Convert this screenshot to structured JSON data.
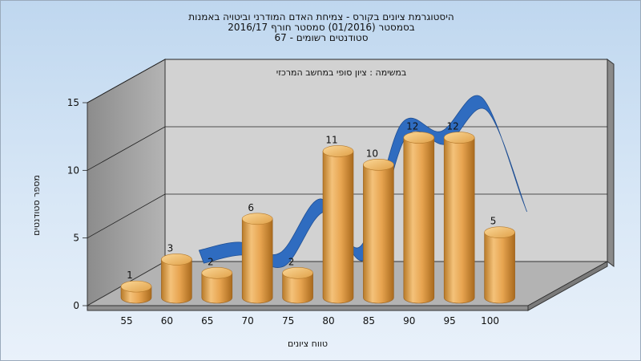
{
  "colors": {
    "background": "#cfe0f2",
    "bar": "#e5a24a",
    "line": "#2f6cc0",
    "back_wall": "#d4d4d4",
    "side_wall": "#a0a0a0",
    "floor": "#b0b0b0"
  },
  "chart_data": {
    "type": "bar",
    "title": [
      "היסטוגרמת ציונים בקורס - צמיחת האדם המודרני וביטויה באמנות",
      "בסמסטר  (01/2016)  סמסטר חורף 2016/17",
      "סטודנטים רשומים - 67"
    ],
    "subtitle": "במשימה : ציון סופי במחשב המרכזי",
    "xlabel": "טווח ציונים",
    "ylabel": "מספר סטודנטים",
    "categories": [
      "55",
      "60",
      "65",
      "70",
      "75",
      "80",
      "85",
      "90",
      "95",
      "100"
    ],
    "values": [
      1,
      3,
      2,
      6,
      2,
      11,
      10,
      12,
      12,
      5
    ],
    "ylim": [
      0,
      15
    ],
    "yticks": [
      "0",
      "5",
      "10",
      "15"
    ],
    "grid": true,
    "curve_series": {
      "type": "line",
      "x": [
        "60",
        "65",
        "70",
        "75",
        "80",
        "85",
        "90",
        "95",
        "100"
      ],
      "values": [
        3.2,
        3.8,
        3.0,
        7.0,
        3.5,
        12.5,
        12.0,
        14.5,
        7.0
      ]
    }
  }
}
